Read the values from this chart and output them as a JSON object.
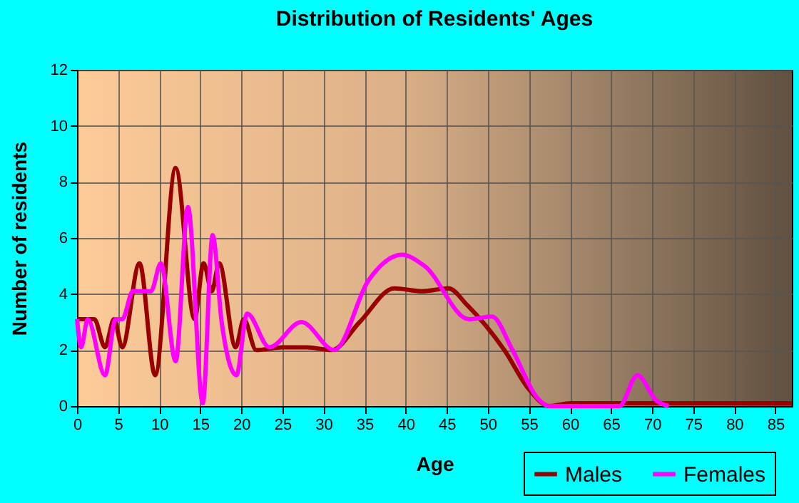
{
  "chart_data": {
    "type": "line",
    "title": "Distribution of Residents' Ages",
    "xlabel": "Age",
    "ylabel": "Number of residents",
    "xlim": [
      0,
      87
    ],
    "xticks": [
      0,
      5,
      10,
      15,
      20,
      25,
      30,
      35,
      40,
      45,
      50,
      55,
      60,
      65,
      70,
      75,
      80,
      85
    ],
    "ylim": [
      0,
      12
    ],
    "yticks": [
      0,
      2,
      4,
      6,
      8,
      10,
      12
    ],
    "grid": true,
    "legend": "bottom right",
    "series": [
      {
        "name": "Males",
        "color": "#990000",
        "x": [
          0,
          2.1,
          3.4,
          4.5,
          5.5,
          7.6,
          9.5,
          12,
          14.3,
          15.4,
          16.4,
          17.3,
          19.3,
          20.3,
          21.8,
          25,
          28,
          31,
          34.4,
          38.6,
          42,
          45.2,
          47.5,
          52,
          55,
          57.5,
          60,
          70,
          80,
          87
        ],
        "values": [
          3.1,
          3.1,
          2.1,
          3.1,
          2.1,
          5.1,
          1.1,
          8.5,
          3.1,
          5.1,
          4.1,
          5.1,
          2.1,
          3.1,
          2.0,
          2.1,
          2.1,
          2.0,
          3.0,
          4.2,
          4.1,
          4.2,
          3.6,
          2.0,
          0.6,
          0,
          0.1,
          0.1,
          0.1,
          0.1
        ]
      },
      {
        "name": "Females",
        "color": "#ff00ff",
        "x": [
          0,
          0.5,
          1.3,
          3.4,
          4.7,
          5.5,
          6.8,
          9,
          10.2,
          12,
          13.5,
          15.3,
          16.5,
          17.6,
          19.4,
          20.7,
          23.4,
          27.3,
          31.3,
          35.5,
          39.5,
          42.3,
          47.7,
          50.5,
          53,
          56,
          57.5,
          66,
          68.2,
          70.5,
          72
        ],
        "values": [
          3.1,
          2.1,
          3.1,
          1.1,
          3.1,
          3.1,
          4.1,
          4.1,
          5.1,
          1.6,
          7.1,
          0.1,
          6.1,
          3.0,
          1.1,
          3.3,
          2.1,
          3.0,
          2.0,
          4.5,
          5.4,
          5.0,
          3.1,
          3.2,
          2.0,
          0.3,
          0,
          0,
          1.1,
          0.2,
          0
        ]
      }
    ]
  }
}
